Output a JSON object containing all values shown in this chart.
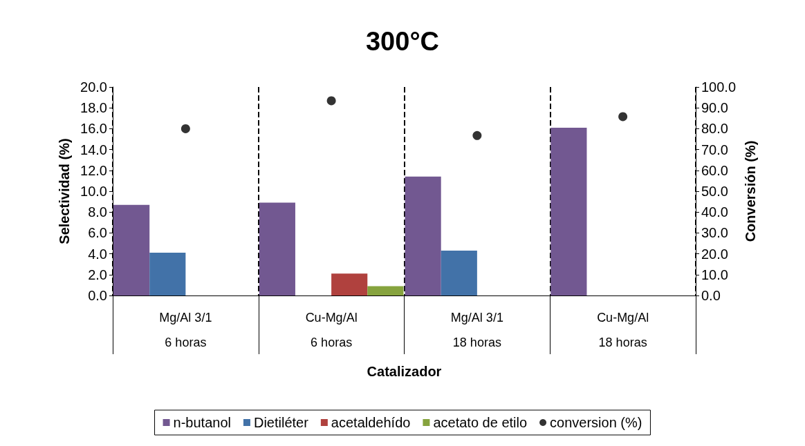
{
  "chart_data": {
    "type": "bar",
    "title": "300°C",
    "xlabel": "Catalizador",
    "ylabel": "Selectividad (%)",
    "y2label": "Conversión (%)",
    "categories": [
      "Mg/Al 3/1\n6 horas",
      "Cu-Mg/Al\n6 horas",
      "Mg/Al 3/1\n18 horas",
      "Cu-Mg/Al\n18 horas"
    ],
    "series": [
      {
        "name": "n-butanol",
        "color": "#725891",
        "values": [
          8.7,
          8.9,
          11.4,
          16.1
        ]
      },
      {
        "name": "Dietiléter",
        "color": "#4272a8",
        "values": [
          4.1,
          null,
          4.3,
          null
        ]
      },
      {
        "name": "acetaldehído",
        "color": "#b0413e",
        "values": [
          null,
          2.1,
          null,
          null
        ]
      },
      {
        "name": "acetato de etilo",
        "color": "#86a33e",
        "values": [
          null,
          0.9,
          null,
          null
        ]
      },
      {
        "name": "conversion (%)",
        "type": "scatter",
        "axis": "y2",
        "marker": "circle",
        "color": "#000000",
        "x": [
          "Mg/Al 3/1\n6 horas",
          "Cu-Mg/Al\n6 horas",
          "Mg/Al 3/1\n18 horas",
          "Cu-Mg/Al\n18 horas"
        ],
        "values": [
          80,
          93.4,
          76.7,
          85.8
        ]
      }
    ],
    "ylim": [
      0,
      20
    ],
    "yticks": [
      {
        "value": 0,
        "label": "0.0"
      },
      {
        "value": 2,
        "label": "2.0"
      },
      {
        "value": 4,
        "label": "4.0"
      },
      {
        "value": 6,
        "label": "6.0"
      },
      {
        "value": 8,
        "label": "8.0"
      },
      {
        "value": 10,
        "label": "10.0"
      },
      {
        "value": 12,
        "label": "12.0"
      },
      {
        "value": 14,
        "label": "14.0"
      },
      {
        "value": 16,
        "label": "16.0"
      },
      {
        "value": 18,
        "label": "18.0"
      },
      {
        "value": 20,
        "label": "20.0"
      }
    ],
    "y2lim": [
      0,
      100
    ],
    "y2ticks": [
      {
        "value": 0,
        "label": "0.0"
      },
      {
        "value": 10,
        "label": "10.0"
      },
      {
        "value": 20,
        "label": "20.0"
      },
      {
        "value": 30,
        "label": "30.0"
      },
      {
        "value": 40,
        "label": "40.0"
      },
      {
        "value": 50,
        "label": "50.0"
      },
      {
        "value": 60,
        "label": "60.0"
      },
      {
        "value": 70,
        "label": "70.0"
      },
      {
        "value": 80,
        "label": "80.0"
      },
      {
        "value": 90,
        "label": "90.0"
      },
      {
        "value": 100,
        "label": "100.0"
      }
    ],
    "grid": "x",
    "legend": "bottom"
  }
}
